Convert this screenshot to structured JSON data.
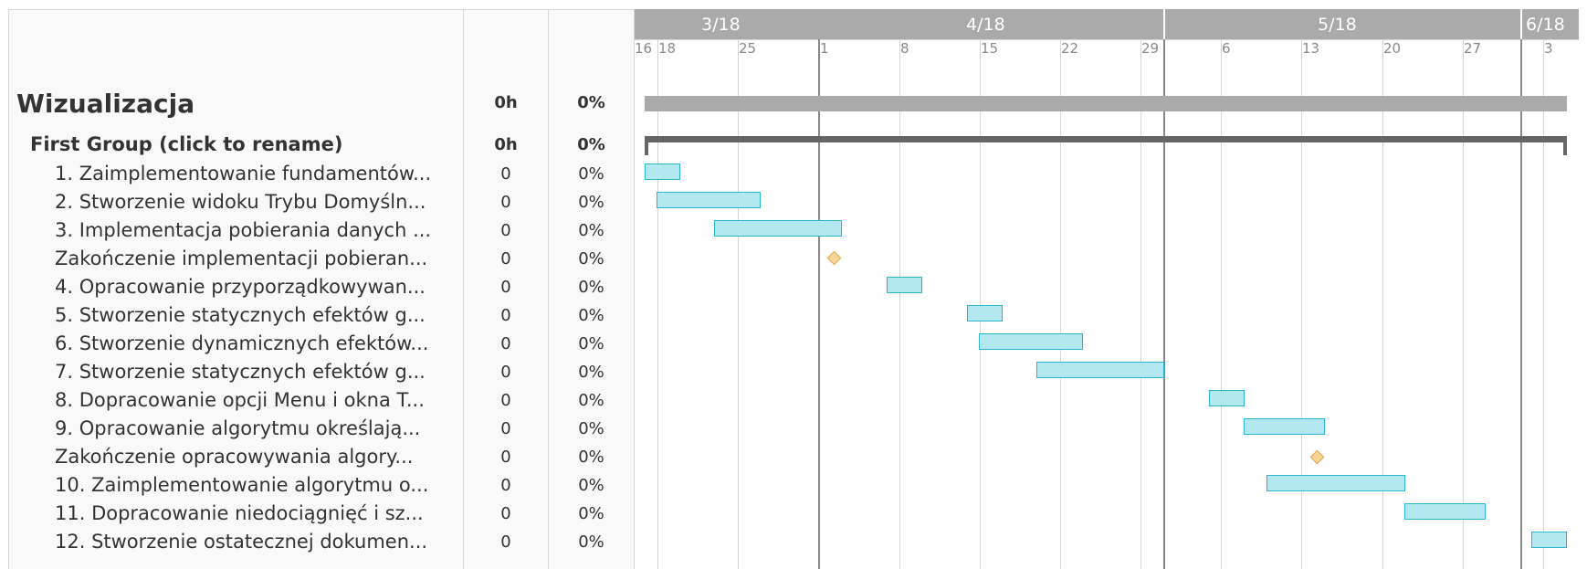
{
  "project": {
    "name": "Wizualizacja",
    "hours": "0h",
    "percent": "0%"
  },
  "group": {
    "name": "First Group (click to rename)",
    "hours": "0h",
    "percent": "0%"
  },
  "tasks": [
    {
      "name": "1. Zaimplementowanie fundamentów...",
      "hours": "0",
      "percent": "0%",
      "type": "task"
    },
    {
      "name": "2. Stworzenie widoku Trybu Domyśln...",
      "hours": "0",
      "percent": "0%",
      "type": "task"
    },
    {
      "name": "3. Implementacja pobierania danych ...",
      "hours": "0",
      "percent": "0%",
      "type": "task"
    },
    {
      "name": "Zakończenie implementacji pobieran...",
      "hours": "0",
      "percent": "0%",
      "type": "milestone"
    },
    {
      "name": "4. Opracowanie przyporządkowywan...",
      "hours": "0",
      "percent": "0%",
      "type": "task"
    },
    {
      "name": "5. Stworzenie statycznych efektów g...",
      "hours": "0",
      "percent": "0%",
      "type": "task"
    },
    {
      "name": "6. Stworzenie dynamicznych efektów...",
      "hours": "0",
      "percent": "0%",
      "type": "task"
    },
    {
      "name": "7. Stworzenie statycznych efektów g...",
      "hours": "0",
      "percent": "0%",
      "type": "task"
    },
    {
      "name": "8. Dopracowanie opcji Menu i okna T...",
      "hours": "0",
      "percent": "0%",
      "type": "task"
    },
    {
      "name": "9. Opracowanie algorytmu określają...",
      "hours": "0",
      "percent": "0%",
      "type": "task"
    },
    {
      "name": "Zakończenie opracowywania algory...",
      "hours": "0",
      "percent": "0%",
      "type": "milestone"
    },
    {
      "name": "10. Zaimplementowanie algorytmu o...",
      "hours": "0",
      "percent": "0%",
      "type": "task"
    },
    {
      "name": "11. Dopracowanie niedociągnięć i sz...",
      "hours": "0",
      "percent": "0%",
      "type": "task"
    },
    {
      "name": "12. Stworzenie ostatecznej dokumen...",
      "hours": "0",
      "percent": "0%",
      "type": "task"
    }
  ],
  "timeline": {
    "months": [
      "3/18",
      "4/18",
      "5/18",
      "6/18"
    ],
    "weeks": [
      "16",
      "18",
      "25",
      "1",
      "8",
      "15",
      "22",
      "29",
      "6",
      "13",
      "20",
      "27",
      "3"
    ]
  },
  "colors": {
    "task_fill": "#b3e8f1",
    "task_border": "#2ab6cf",
    "milestone_fill": "#f8d69a",
    "milestone_border": "#e3a63c",
    "project_bar": "#aaaaaa",
    "group_bar": "#666666",
    "header_strip": "#aaaaaa"
  }
}
